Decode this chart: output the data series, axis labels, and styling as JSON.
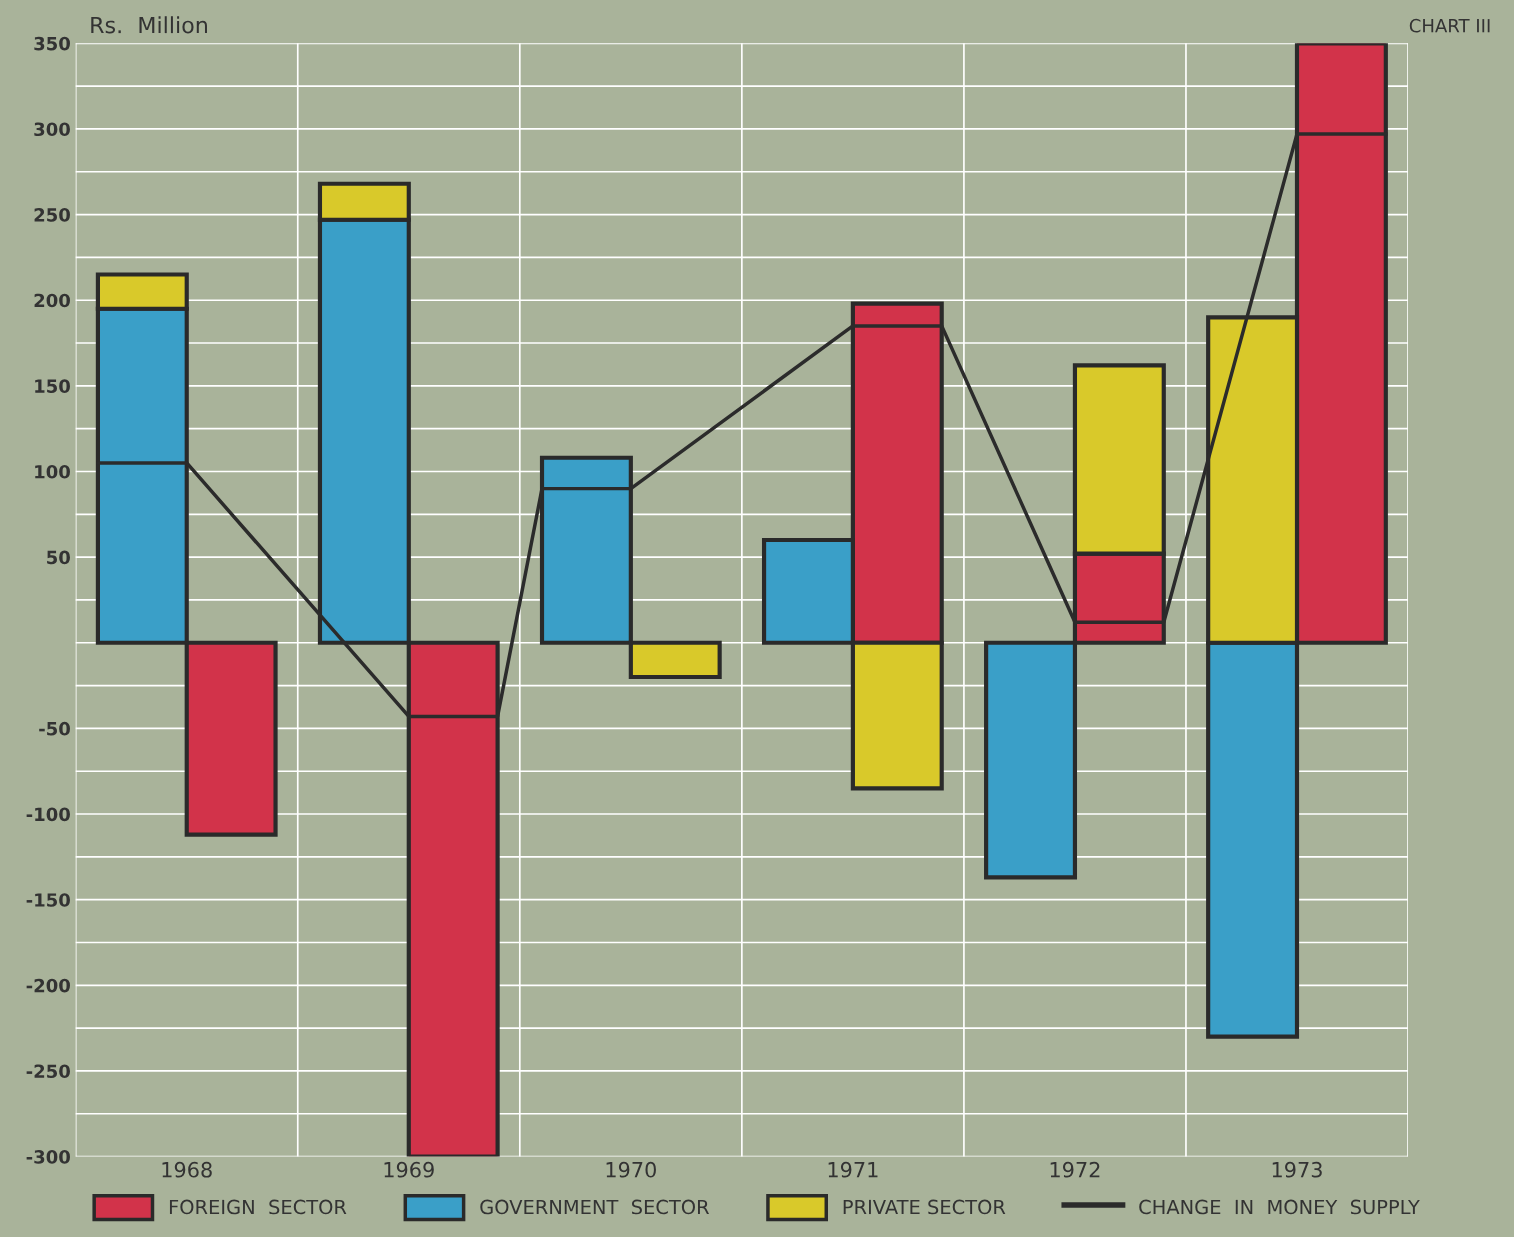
{
  "chart_data": {
    "type": "bar",
    "stacked": true,
    "title": "CHART III",
    "ylabel": "Rs.  Million",
    "x": [
      1967.8,
      1968.2,
      1968.8,
      1969.2,
      1969.8,
      1970.2,
      1970.8,
      1971.2,
      1971.8,
      1972.2,
      1972.8,
      1973.2
    ],
    "series": [
      {
        "name": "FOREIGN  SECTOR",
        "color": "#d2334a",
        "values": [
          null,
          -112,
          null,
          -300,
          null,
          null,
          null,
          198,
          null,
          52,
          null,
          350
        ]
      },
      {
        "name": "GOVERNMENT  SECTOR",
        "color": "#3a9fc8",
        "values": [
          195,
          null,
          247,
          null,
          108,
          null,
          60,
          null,
          -137,
          null,
          -230,
          null
        ]
      },
      {
        "name": "PRIVATE SECTOR",
        "color": "#d9c92a",
        "values": [
          20,
          null,
          21,
          null,
          null,
          -20,
          null,
          -85,
          null,
          110,
          190,
          null
        ]
      },
      {
        "name": "CHANGE  IN  MONEY  SUPPLY",
        "type": "line",
        "color": "#2b2b2b",
        "x": [
          1967.6,
          1968.0,
          1969.0,
          1969.4,
          1969.6,
          1970.0,
          1971.0,
          1971.4,
          1972.0,
          1972.4,
          1973.0,
          1973.4
        ],
        "values": [
          105,
          105,
          -43,
          -43,
          90,
          90,
          185,
          185,
          12,
          12,
          297,
          297
        ]
      }
    ],
    "xlim": [
      1967.5,
      1973.5
    ],
    "xticks": [
      {
        "value": 1967.5,
        "label": null
      },
      1968,
      {
        "value": 1968.5,
        "label": null
      },
      1969,
      {
        "value": 1969.5,
        "label": null
      },
      1970,
      {
        "value": 1970.5,
        "label": null
      },
      1971,
      {
        "value": 1971.5,
        "label": null
      },
      1972,
      {
        "value": 1972.5,
        "label": null
      },
      1973,
      {
        "value": 1973.5,
        "label": null
      }
    ],
    "ylim": [
      -300,
      350
    ],
    "yticks": [
      -300,
      {
        "value": -275,
        "label": null
      },
      -250,
      {
        "value": -225,
        "label": null
      },
      -200,
      {
        "value": -175,
        "label": null
      },
      -150,
      {
        "value": -125,
        "label": null
      },
      -100,
      {
        "value": -75,
        "label": null
      },
      -50,
      {
        "value": -25,
        "label": null
      },
      {
        "value": 0,
        "label": null
      },
      {
        "value": 25,
        "label": null
      },
      50,
      {
        "value": 75,
        "label": null
      },
      100,
      {
        "value": 125,
        "label": null
      },
      150,
      {
        "value": 175,
        "label": null
      },
      200,
      {
        "value": 225,
        "label": null
      },
      250,
      {
        "value": 275,
        "label": null
      },
      300,
      {
        "value": 325,
        "label": null
      },
      350
    ],
    "grid": true,
    "legend": "bottom"
  }
}
